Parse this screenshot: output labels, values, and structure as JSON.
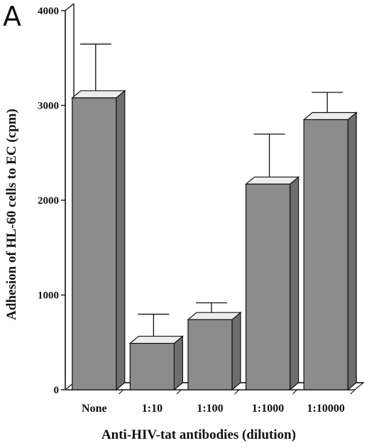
{
  "panel_label": "A",
  "chart_data": {
    "type": "bar",
    "categories": [
      "None",
      "1:10",
      "1:100",
      "1:1000",
      "1:10000"
    ],
    "values": [
      3080,
      490,
      740,
      2170,
      2850
    ],
    "error_upper": [
      3610,
      760,
      880,
      2660,
      3100
    ],
    "xlabel": "Anti-HIV-tat antibodies (dilution)",
    "ylabel": "Adhesion of HL-60 cells to EC (cpm)",
    "ylim": [
      0,
      4000
    ],
    "yticks": [
      0,
      1000,
      2000,
      3000,
      4000
    ],
    "grid": false,
    "style": "3d-bar",
    "colors": {
      "bar_front": "#8c8c8c",
      "bar_side": "#6e6e6e",
      "bar_top": "#ededed",
      "axis": "#111111"
    }
  }
}
